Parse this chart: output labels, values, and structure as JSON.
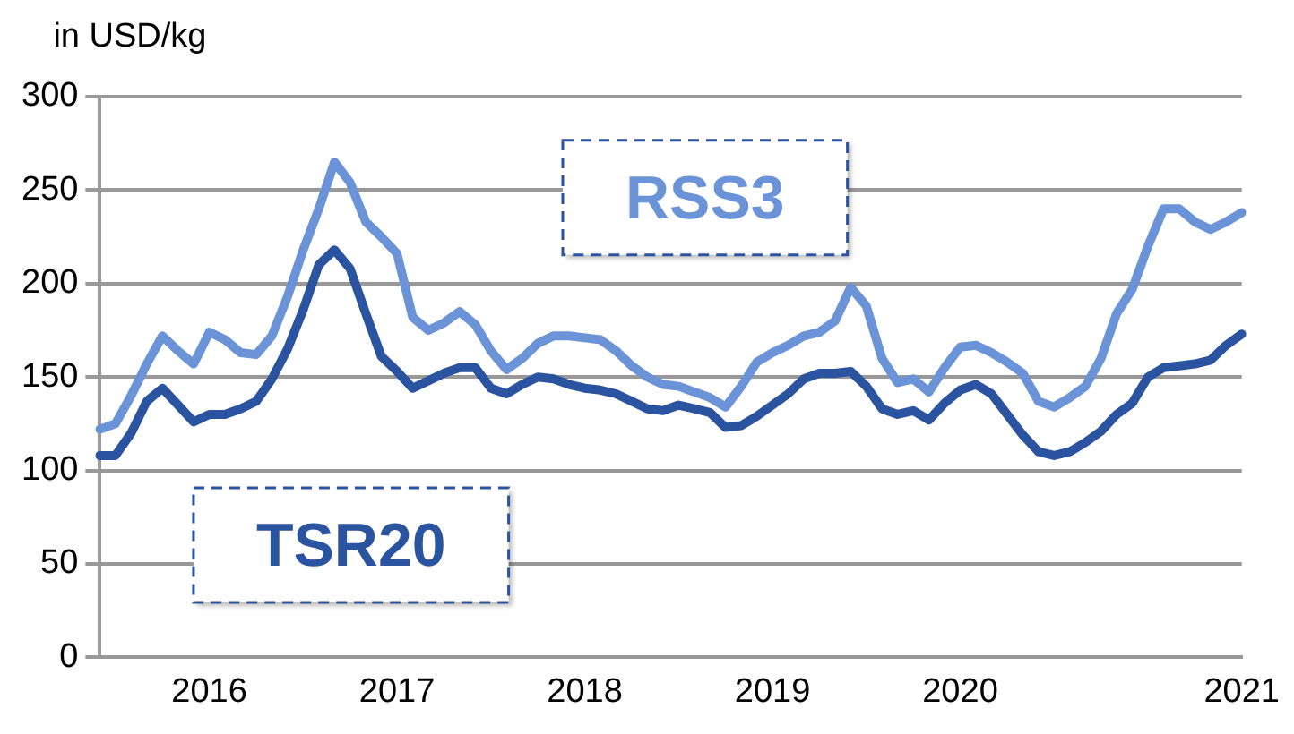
{
  "chart_data": {
    "type": "line",
    "ylabel": "in USD/kg",
    "categories": [
      null,
      null,
      null,
      null,
      null,
      null,
      null,
      "2016",
      null,
      null,
      null,
      null,
      null,
      null,
      null,
      null,
      null,
      null,
      null,
      "2017",
      null,
      null,
      null,
      null,
      null,
      null,
      null,
      null,
      null,
      null,
      null,
      "2018",
      null,
      null,
      null,
      null,
      null,
      null,
      null,
      null,
      null,
      null,
      null,
      "2019",
      null,
      null,
      null,
      null,
      null,
      null,
      null,
      null,
      null,
      null,
      null,
      "2020",
      null,
      null,
      null,
      null,
      null,
      null,
      null,
      null,
      null,
      null,
      null,
      null,
      null,
      null,
      null,
      null,
      null,
      "2021"
    ],
    "series": [
      {
        "name": "RSS3",
        "color": "#6a93d8",
        "values": [
          122,
          125,
          140,
          157,
          172,
          164,
          157,
          174,
          170,
          163,
          162,
          172,
          193,
          218,
          240,
          265,
          254,
          233,
          225,
          216,
          182,
          175,
          179,
          185,
          178,
          164,
          154,
          160,
          168,
          172,
          172,
          171,
          170,
          164,
          156,
          150,
          146,
          145,
          142,
          139,
          134,
          145,
          158,
          163,
          167,
          172,
          174,
          180,
          198,
          188,
          160,
          147,
          149,
          142,
          155,
          166,
          167,
          163,
          158,
          152,
          137,
          134,
          139,
          145,
          160,
          184,
          197,
          220,
          240,
          240,
          233,
          229,
          233,
          238
        ]
      },
      {
        "name": "TSR20",
        "color": "#2b54a0",
        "values": [
          108,
          108,
          120,
          137,
          144,
          135,
          126,
          130,
          130,
          133,
          137,
          149,
          165,
          186,
          210,
          218,
          208,
          184,
          161,
          153,
          144,
          148,
          152,
          155,
          155,
          144,
          141,
          146,
          150,
          149,
          146,
          144,
          143,
          141,
          137,
          133,
          132,
          135,
          133,
          131,
          123,
          124,
          129,
          135,
          141,
          149,
          152,
          152,
          153,
          145,
          133,
          130,
          132,
          127,
          136,
          143,
          146,
          141,
          130,
          119,
          110,
          108,
          110,
          115,
          121,
          130,
          136,
          150,
          155,
          156,
          157,
          159,
          167,
          173
        ]
      }
    ],
    "ylim": [
      0,
      300
    ],
    "yticks": [
      0,
      50,
      100,
      150,
      200,
      250,
      300
    ],
    "grid": "y",
    "marker": "none",
    "line_style": "solid"
  }
}
